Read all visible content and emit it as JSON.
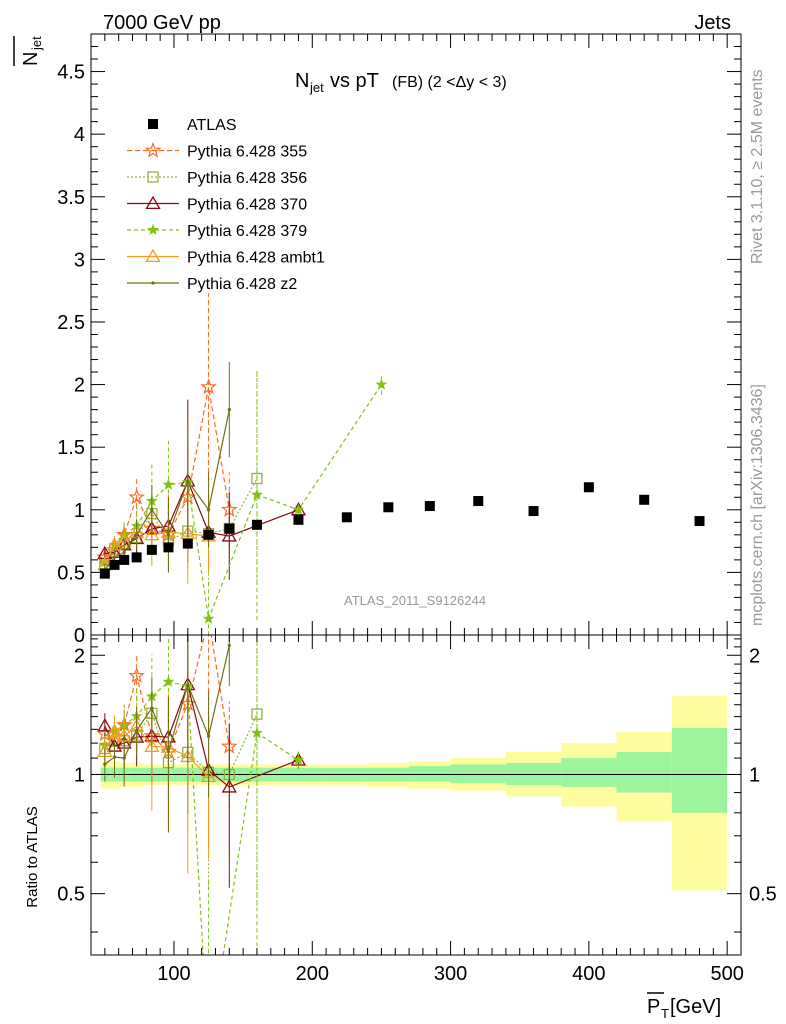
{
  "header": {
    "left": "7000 GeV pp",
    "right": "Jets"
  },
  "side_labels": {
    "rivet": "Rivet 3.1.10, ≥ 2.5M events",
    "mcplots": "mcplots.cern.ch [arXiv:1306.3436]"
  },
  "watermark": "ATLAS_2011_S9126244",
  "chart_data": [
    {
      "type": "scatter",
      "title_main": "N",
      "title_sub": "jet",
      "title_rest": " vs pT",
      "title_detail": " (FB) (2 <Δy < 3)",
      "ylabel_main": "N",
      "ylabel_sub": "jet",
      "xlim": [
        40,
        510
      ],
      "ylim": [
        0,
        4.8
      ],
      "yticks": [
        0,
        0.5,
        1,
        1.5,
        2,
        2.5,
        3,
        3.5,
        4,
        4.5
      ],
      "ytick_labels": [
        "0",
        "0.5",
        "1",
        "1.5",
        "2",
        "2.5",
        "3",
        "3.5",
        "4",
        "4.5"
      ],
      "legend_position": "top-left",
      "data": {
        "name": "ATLAS",
        "color": "#000000",
        "x": [
          50,
          57,
          64,
          73,
          84,
          96,
          110,
          125,
          140,
          160,
          190,
          225,
          255,
          285,
          320,
          360,
          400,
          440,
          480
        ],
        "y": [
          0.49,
          0.56,
          0.6,
          0.62,
          0.68,
          0.7,
          0.73,
          0.8,
          0.85,
          0.88,
          0.92,
          0.94,
          1.02,
          1.03,
          1.07,
          0.99,
          1.18,
          1.08,
          0.91
        ]
      },
      "series": [
        {
          "name": "Pythia 6.428 355",
          "color": "#ff6a1a",
          "dash": "5,3",
          "marker": "star",
          "x": [
            50,
            57,
            64,
            73,
            84,
            96,
            110,
            125,
            140
          ],
          "y": [
            0.62,
            0.68,
            0.8,
            1.1,
            0.85,
            0.8,
            1.1,
            1.98,
            1.0
          ],
          "err": [
            0.05,
            0.07,
            0.1,
            0.15,
            0.2,
            0.3,
            0.4,
            0.75,
            0.3
          ]
        },
        {
          "name": "Pythia 6.428 356",
          "color": "#92b43c",
          "dash": "2,2",
          "marker": "square",
          "x": [
            50,
            57,
            64,
            73,
            84,
            96,
            110,
            125,
            140,
            160
          ],
          "y": [
            0.57,
            0.68,
            0.73,
            0.78,
            0.97,
            0.75,
            0.83,
            0.81,
            0.85,
            1.25
          ],
          "err": [
            0.05,
            0.07,
            0.1,
            0.12,
            0.2,
            0.25,
            0.3,
            0.4,
            0.3,
            0.85
          ]
        },
        {
          "name": "Pythia 6.428 370",
          "color": "#8b0a14",
          "dash": "",
          "marker": "triangle",
          "x": [
            50,
            57,
            64,
            73,
            84,
            96,
            110,
            125,
            140,
            190
          ],
          "y": [
            0.65,
            0.66,
            0.72,
            0.77,
            0.85,
            0.87,
            1.23,
            0.82,
            0.79,
            1.0
          ],
          "err": [
            0.05,
            0.07,
            0.1,
            0.12,
            0.2,
            0.25,
            0.65,
            0.3,
            0.35,
            0.05
          ]
        },
        {
          "name": "Pythia 6.428 379",
          "color": "#80c410",
          "dash": "4,3",
          "marker": "smallstar",
          "x": [
            50,
            57,
            64,
            73,
            84,
            96,
            110,
            125,
            160,
            190,
            250
          ],
          "y": [
            0.58,
            0.72,
            0.8,
            0.87,
            1.07,
            1.2,
            1.22,
            0.13,
            1.12,
            1.0,
            2.0
          ],
          "err": [
            0.05,
            0.07,
            0.1,
            0.15,
            0.3,
            0.35,
            0.45,
            0.3,
            1.0,
            0.05,
            0.08
          ]
        },
        {
          "name": "Pythia 6.428 ambt1",
          "color": "#f0a020",
          "dash": "",
          "marker": "triangle",
          "x": [
            50,
            57,
            64,
            73,
            84,
            96,
            110,
            125
          ],
          "y": [
            0.56,
            0.72,
            0.75,
            0.82,
            0.8,
            0.82,
            0.81,
            0.79
          ],
          "err": [
            0.05,
            0.07,
            0.1,
            0.12,
            0.25,
            0.3,
            0.4,
            0.3
          ]
        },
        {
          "name": "Pythia 6.428 z2",
          "color": "#707010",
          "dash": "",
          "marker": "dot",
          "x": [
            50,
            57,
            64,
            73,
            84,
            96,
            110,
            125,
            140
          ],
          "y": [
            0.52,
            0.62,
            0.66,
            0.8,
            1.0,
            0.8,
            1.23,
            1.0,
            1.8
          ],
          "err": [
            0.05,
            0.07,
            0.1,
            0.12,
            0.2,
            0.3,
            0.45,
            0.3,
            0.38
          ]
        }
      ]
    },
    {
      "type": "line",
      "ylabel": "Ratio to ATLAS",
      "xlabel_main": "P",
      "xlabel_sub": "T",
      "xlabel_unit": " [GeV]",
      "xlim": [
        40,
        510
      ],
      "ylim": [
        0.35,
        2.25
      ],
      "yticks": [
        0.5,
        1,
        2
      ],
      "ytick_labels": [
        "0.5",
        "1",
        "2"
      ],
      "xticks": [
        100,
        200,
        300,
        400,
        500
      ],
      "xtick_labels": [
        "100",
        "200",
        "300",
        "400",
        "500"
      ],
      "band_color_inner": "#9cf59c",
      "band_color_outer": "#fdfda0",
      "bands": {
        "x_edges": [
          47,
          54,
          61,
          68,
          78,
          90,
          103,
          118,
          133,
          150,
          175,
          210,
          240,
          270,
          300,
          340,
          380,
          420,
          460,
          500
        ],
        "inner_lo": [
          0.96,
          0.96,
          0.96,
          0.96,
          0.96,
          0.96,
          0.96,
          0.96,
          0.96,
          0.96,
          0.96,
          0.96,
          0.96,
          0.96,
          0.95,
          0.94,
          0.93,
          0.9,
          0.8
        ],
        "inner_hi": [
          1.04,
          1.04,
          1.04,
          1.04,
          1.04,
          1.04,
          1.04,
          1.04,
          1.04,
          1.04,
          1.04,
          1.04,
          1.04,
          1.05,
          1.06,
          1.07,
          1.1,
          1.14,
          1.31
        ],
        "outer_lo": [
          0.92,
          0.92,
          0.93,
          0.93,
          0.94,
          0.94,
          0.94,
          0.94,
          0.94,
          0.94,
          0.94,
          0.94,
          0.93,
          0.92,
          0.91,
          0.88,
          0.83,
          0.76,
          0.51
        ],
        "outer_hi": [
          1.08,
          1.08,
          1.07,
          1.07,
          1.06,
          1.06,
          1.06,
          1.06,
          1.06,
          1.06,
          1.06,
          1.06,
          1.07,
          1.08,
          1.1,
          1.14,
          1.2,
          1.28,
          1.58
        ]
      }
    }
  ]
}
